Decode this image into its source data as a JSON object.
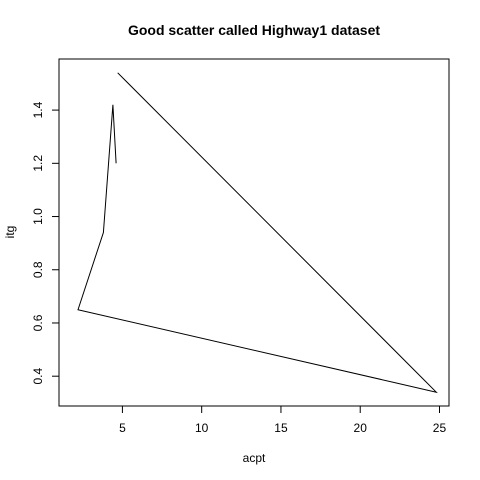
{
  "chart_data": {
    "type": "line",
    "title": "Good scatter called Highway1 dataset",
    "xlabel": "acpt",
    "ylabel": "itg",
    "xlim": [
      1.0,
      25.6
    ],
    "ylim": [
      0.288,
      1.592
    ],
    "x_ticks": [
      5,
      10,
      15,
      20,
      25
    ],
    "y_ticks": [
      0.4,
      0.6,
      0.8,
      1.0,
      1.2,
      1.4
    ],
    "x_tick_labels": [
      "5",
      "10",
      "15",
      "20",
      "25"
    ],
    "y_tick_labels": [
      "0.4",
      "0.6",
      "0.8",
      "1.0",
      "1.2",
      "1.4"
    ],
    "grid": false,
    "legend": "none",
    "line_color": "#000000",
    "series": [
      {
        "x": [
          4.6,
          4.4,
          3.8,
          2.2,
          24.8,
          4.7
        ],
        "y": [
          1.2,
          1.42,
          0.94,
          0.65,
          0.34,
          1.54
        ]
      }
    ]
  }
}
